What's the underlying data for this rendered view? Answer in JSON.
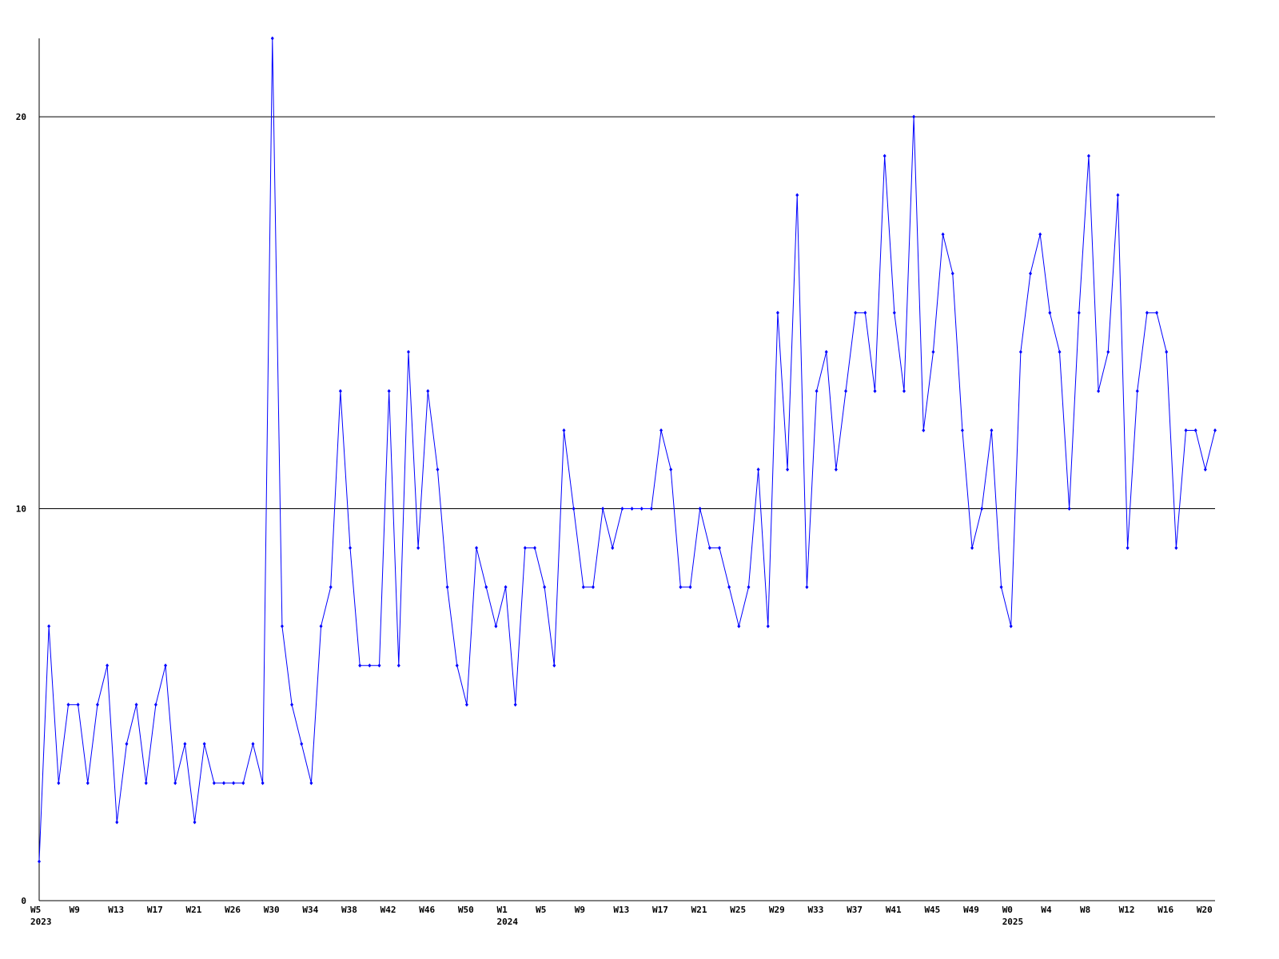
{
  "chart_data": {
    "type": "line",
    "categories": [
      "W5",
      null,
      null,
      null,
      "W9",
      null,
      null,
      null,
      "W13",
      null,
      null,
      null,
      "W17",
      null,
      null,
      null,
      "W21",
      null,
      null,
      null,
      "W26",
      null,
      null,
      null,
      "W30",
      null,
      null,
      null,
      "W34",
      null,
      null,
      null,
      "W38",
      null,
      null,
      null,
      "W42",
      null,
      null,
      null,
      "W46",
      null,
      null,
      null,
      "W50",
      null,
      null,
      null,
      "W1",
      null,
      null,
      null,
      "W5",
      null,
      null,
      null,
      "W9",
      null,
      null,
      null,
      "W13",
      null,
      null,
      null,
      "W17",
      null,
      null,
      null,
      "W21",
      null,
      null,
      null,
      "W25",
      null,
      null,
      null,
      "W29",
      null,
      null,
      null,
      "W33",
      null,
      null,
      null,
      "W37",
      null,
      null,
      null,
      "W41",
      null,
      null,
      null,
      "W45",
      null,
      null,
      null,
      "W49",
      null,
      null,
      null,
      "W0",
      null,
      null,
      null,
      "W4",
      null,
      null,
      null,
      "W8",
      null,
      null,
      null,
      "W12",
      null,
      null,
      null,
      "W16",
      null,
      null,
      null,
      "W20",
      null
    ],
    "year_labels": [
      "2023",
      null,
      null,
      null,
      null,
      null,
      null,
      null,
      null,
      null,
      null,
      null,
      null,
      null,
      null,
      null,
      null,
      null,
      null,
      null,
      null,
      null,
      null,
      null,
      null,
      null,
      null,
      null,
      null,
      null,
      null,
      null,
      null,
      null,
      null,
      null,
      null,
      null,
      null,
      null,
      null,
      null,
      null,
      null,
      null,
      null,
      null,
      null,
      "2024",
      null,
      null,
      null,
      null,
      null,
      null,
      null,
      null,
      null,
      null,
      null,
      null,
      null,
      null,
      null,
      null,
      null,
      null,
      null,
      null,
      null,
      null,
      null,
      null,
      null,
      null,
      null,
      null,
      null,
      null,
      null,
      null,
      null,
      null,
      null,
      null,
      null,
      null,
      null,
      null,
      null,
      null,
      null,
      null,
      null,
      null,
      null,
      null,
      null,
      null,
      null,
      "2025",
      null,
      null,
      null,
      null,
      null,
      null,
      null,
      null,
      null,
      null,
      null,
      null,
      null,
      null,
      null,
      null,
      null,
      null,
      null,
      null,
      null
    ],
    "values": [
      1,
      7,
      3,
      5,
      5,
      3,
      5,
      6,
      2,
      4,
      5,
      3,
      5,
      6,
      3,
      4,
      2,
      4,
      3,
      3,
      3,
      3,
      4,
      3,
      22,
      7,
      5,
      4,
      3,
      7,
      8,
      13,
      9,
      6,
      6,
      6,
      13,
      6,
      14,
      9,
      13,
      11,
      8,
      6,
      5,
      9,
      8,
      7,
      8,
      5,
      9,
      9,
      8,
      6,
      12,
      10,
      8,
      8,
      10,
      9,
      10,
      10,
      10,
      10,
      12,
      11,
      8,
      8,
      10,
      9,
      9,
      8,
      7,
      8,
      11,
      7,
      15,
      11,
      18,
      8,
      13,
      14,
      11,
      13,
      15,
      15,
      13,
      19,
      15,
      13,
      20,
      12,
      14,
      17,
      16,
      12,
      9,
      10,
      12,
      8,
      7,
      14,
      16,
      17,
      15,
      14,
      10,
      15,
      19,
      13,
      14,
      18,
      9,
      13,
      15,
      15,
      14,
      9,
      12,
      12,
      11,
      12
    ],
    "color": "#0000ff",
    "ylim": [
      0,
      22
    ],
    "yticks": [
      0,
      10,
      20
    ],
    "grid": true
  }
}
